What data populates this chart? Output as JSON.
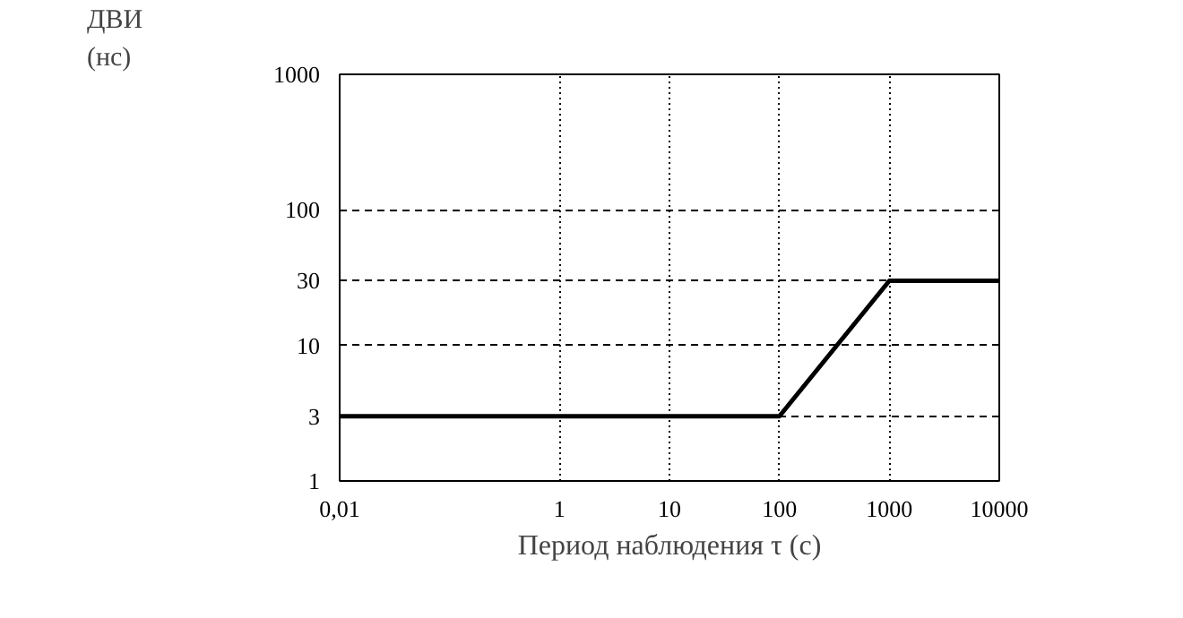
{
  "chart_data": {
    "type": "line",
    "xlabel": "Период наблюдения τ (с)",
    "ylabel": "ДВИ (нс)",
    "log": "xy",
    "x": [
      0.01,
      100,
      1000,
      10000
    ],
    "series": [
      {
        "color": "#000000",
        "values": [
          3,
          3,
          30,
          30
        ]
      }
    ],
    "xlim": [
      0.01,
      10000
    ],
    "xticks": [
      {
        "value": 0.01,
        "label": "0,01"
      },
      1,
      10,
      100,
      1000,
      10000
    ],
    "ylim": [
      1,
      1000
    ],
    "yticks": [
      1,
      3,
      10,
      30,
      100,
      1000
    ],
    "grid": true,
    "marker": "none",
    "line_style": "solid"
  }
}
